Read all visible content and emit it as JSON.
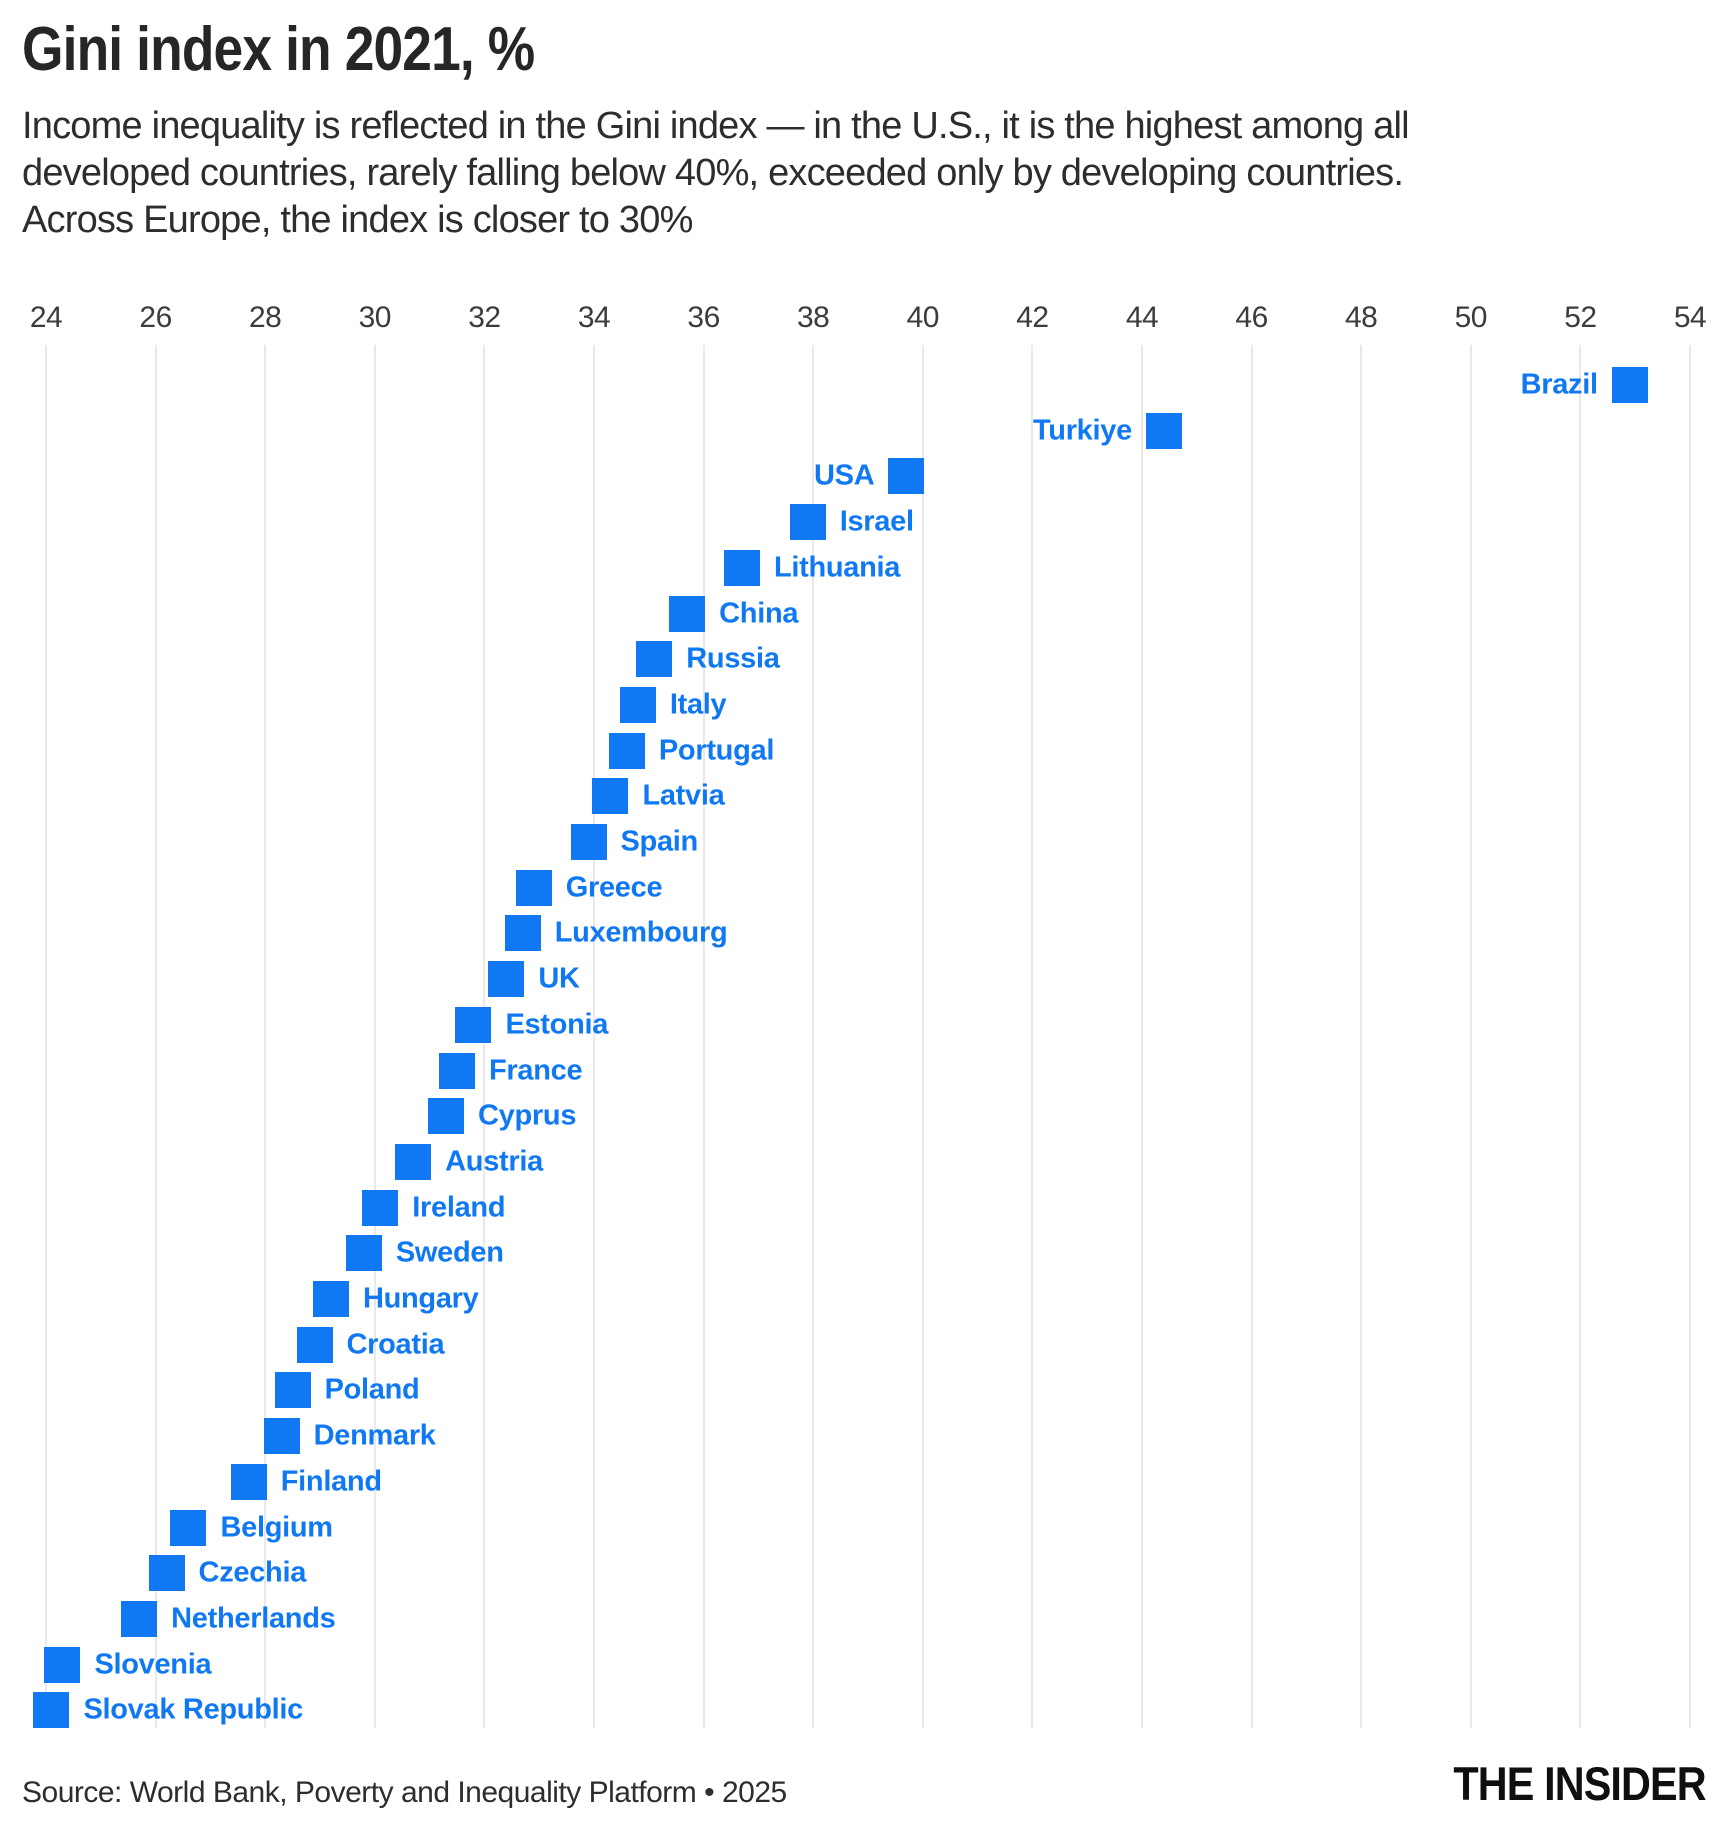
{
  "header": {
    "title": "Gini index in 2021, %",
    "subtitle_lines": [
      "Income inequality is reflected in the Gini index — in the U.S., it is the highest among all",
      "developed countries, rarely falling below 40%, exceeded only by developing countries.",
      "Across Europe, the index is closer to 30%"
    ]
  },
  "chart_data": {
    "type": "scatter",
    "marker": "square",
    "title": "Gini index in 2021, %",
    "xlim": [
      24,
      54
    ],
    "x_ticks": [
      24,
      26,
      28,
      30,
      32,
      34,
      36,
      38,
      40,
      42,
      44,
      46,
      48,
      50,
      52,
      54
    ],
    "grid": "vertical",
    "legend": "none",
    "points": [
      {
        "country": "Brazil",
        "value": 52.9,
        "label_side": "left"
      },
      {
        "country": "Turkiye",
        "value": 44.4,
        "label_side": "left"
      },
      {
        "country": "USA",
        "value": 39.7,
        "label_side": "left"
      },
      {
        "country": "Israel",
        "value": 37.9,
        "label_side": "right"
      },
      {
        "country": "Lithuania",
        "value": 36.7,
        "label_side": "right"
      },
      {
        "country": "China",
        "value": 35.7,
        "label_side": "right"
      },
      {
        "country": "Russia",
        "value": 35.1,
        "label_side": "right"
      },
      {
        "country": "Italy",
        "value": 34.8,
        "label_side": "right"
      },
      {
        "country": "Portugal",
        "value": 34.6,
        "label_side": "right"
      },
      {
        "country": "Latvia",
        "value": 34.3,
        "label_side": "right"
      },
      {
        "country": "Spain",
        "value": 33.9,
        "label_side": "right"
      },
      {
        "country": "Greece",
        "value": 32.9,
        "label_side": "right"
      },
      {
        "country": "Luxembourg",
        "value": 32.7,
        "label_side": "right"
      },
      {
        "country": "UK",
        "value": 32.4,
        "label_side": "right"
      },
      {
        "country": "Estonia",
        "value": 31.8,
        "label_side": "right"
      },
      {
        "country": "France",
        "value": 31.5,
        "label_side": "right"
      },
      {
        "country": "Cyprus",
        "value": 31.3,
        "label_side": "right"
      },
      {
        "country": "Austria",
        "value": 30.7,
        "label_side": "right"
      },
      {
        "country": "Ireland",
        "value": 30.1,
        "label_side": "right"
      },
      {
        "country": "Sweden",
        "value": 29.8,
        "label_side": "right"
      },
      {
        "country": "Hungary",
        "value": 29.2,
        "label_side": "right"
      },
      {
        "country": "Croatia",
        "value": 28.9,
        "label_side": "right"
      },
      {
        "country": "Poland",
        "value": 28.5,
        "label_side": "right"
      },
      {
        "country": "Denmark",
        "value": 28.3,
        "label_side": "right"
      },
      {
        "country": "Finland",
        "value": 27.7,
        "label_side": "right"
      },
      {
        "country": "Belgium",
        "value": 26.6,
        "label_side": "right"
      },
      {
        "country": "Czechia",
        "value": 26.2,
        "label_side": "right"
      },
      {
        "country": "Netherlands",
        "value": 25.7,
        "label_side": "right"
      },
      {
        "country": "Slovenia",
        "value": 24.3,
        "label_side": "right"
      },
      {
        "country": "Slovak Republic",
        "value": 24.1,
        "label_side": "right"
      }
    ]
  },
  "colors": {
    "accent_blue": "#0f78f2",
    "gridline": "#e9e9e9",
    "title_text": "#262626",
    "body_text": "#2d2d2d",
    "axis_text": "#3c3c3c",
    "logo_text": "#0f0f0f"
  },
  "footer": {
    "source": "Source: World Bank, Poverty and Inequality Platform • 2025",
    "logo": "THE INSIDER"
  }
}
